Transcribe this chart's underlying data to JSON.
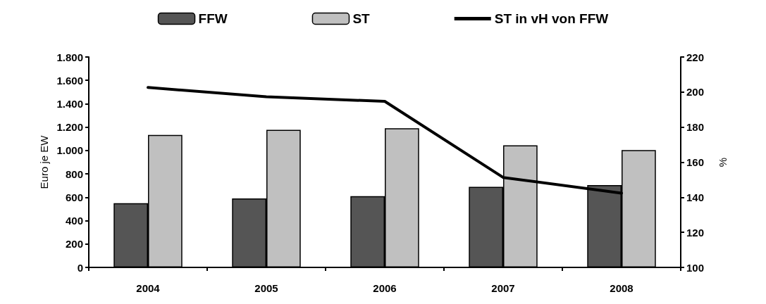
{
  "chart_data": {
    "type": "bar",
    "ylabel": "Euro je EW",
    "y2label": "%",
    "categories": [
      "2004",
      "2005",
      "2006",
      "2007",
      "2008"
    ],
    "series": [
      {
        "name": "FFW",
        "color": "#555555",
        "values": [
          550,
          590,
          610,
          690,
          704
        ]
      },
      {
        "name": "ST",
        "color": "#c0c0c0",
        "values": [
          1133,
          1177,
          1190,
          1044,
          1004
        ]
      },
      {
        "name": "ST in vH von FFW",
        "type": "line",
        "axis": "y2",
        "color": "#000000",
        "values": [
          202.6,
          197.3,
          194.7,
          151.3,
          142.3
        ]
      }
    ],
    "ylim": [
      0,
      1800
    ],
    "yticks": [
      {
        "value": 0,
        "label": "0"
      },
      {
        "value": 200,
        "label": "200"
      },
      {
        "value": 400,
        "label": "400"
      },
      {
        "value": 600,
        "label": "600"
      },
      {
        "value": 800,
        "label": "800"
      },
      {
        "value": 1000,
        "label": "1.000"
      },
      {
        "value": 1200,
        "label": "1.200"
      },
      {
        "value": 1400,
        "label": "1.400"
      },
      {
        "value": 1600,
        "label": "1.600"
      },
      {
        "value": 1800,
        "label": "1.800"
      }
    ],
    "y2lim": [
      100,
      220
    ],
    "y2ticks": [
      100,
      120,
      140,
      160,
      180,
      200,
      220
    ],
    "legend": "top",
    "grid": false,
    "marker": "none",
    "line_style": "solid"
  }
}
